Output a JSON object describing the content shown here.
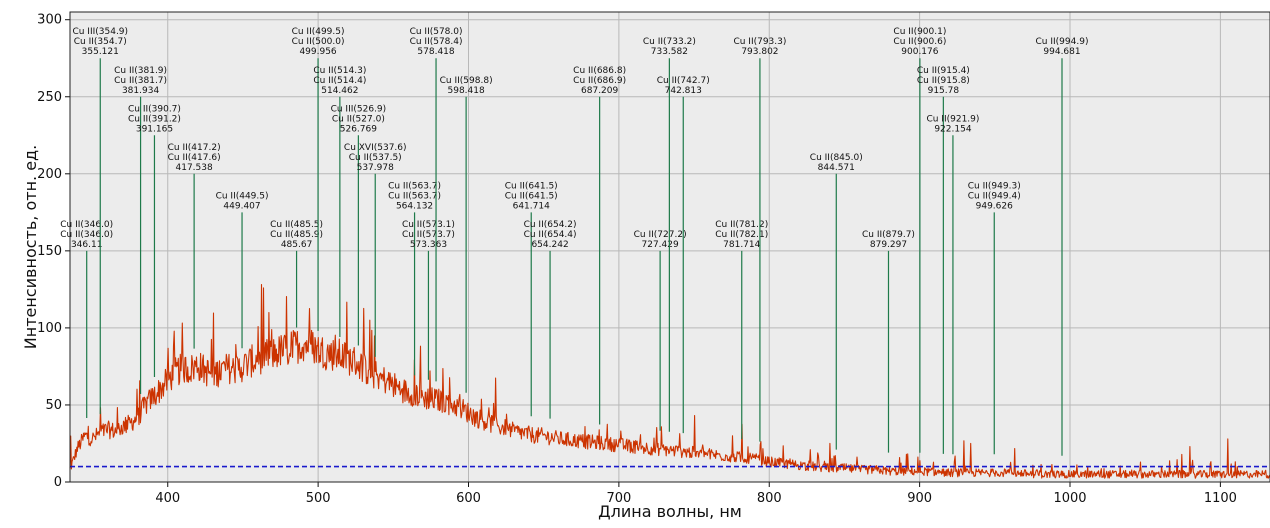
{
  "chart_data": {
    "type": "line",
    "title": "",
    "xlabel": "Длина волны, нм",
    "ylabel": "Интенсивность, отн. ед.",
    "xlim": [
      335,
      1133
    ],
    "ylim": [
      0,
      305
    ],
    "x_ticks": [
      400,
      500,
      600,
      700,
      800,
      900,
      1000,
      1100
    ],
    "y_ticks": [
      0,
      50,
      100,
      150,
      200,
      250,
      300
    ],
    "grid": true,
    "colors": {
      "spectrum": "#cc3300",
      "lines": "#1e7a4a",
      "threshold": "#1a1acc",
      "plot_bg": "#ececec",
      "grid": "#b8b8b8"
    },
    "threshold": {
      "y": 10,
      "style": "dashed"
    },
    "spectrum": {
      "name": "",
      "points": [
        [
          335,
          8
        ],
        [
          340,
          22
        ],
        [
          345,
          30
        ],
        [
          350,
          28
        ],
        [
          355,
          32
        ],
        [
          360,
          34
        ],
        [
          365,
          33
        ],
        [
          370,
          36
        ],
        [
          375,
          38
        ],
        [
          380,
          42
        ],
        [
          385,
          50
        ],
        [
          390,
          55
        ],
        [
          395,
          60
        ],
        [
          400,
          66
        ],
        [
          405,
          71
        ],
        [
          410,
          74
        ],
        [
          415,
          73
        ],
        [
          420,
          76
        ],
        [
          425,
          72
        ],
        [
          430,
          70
        ],
        [
          435,
          72
        ],
        [
          440,
          74
        ],
        [
          445,
          73
        ],
        [
          450,
          75
        ],
        [
          455,
          78
        ],
        [
          460,
          80
        ],
        [
          465,
          82
        ],
        [
          470,
          83
        ],
        [
          475,
          85
        ],
        [
          480,
          86
        ],
        [
          485,
          88
        ],
        [
          490,
          90
        ],
        [
          495,
          89
        ],
        [
          500,
          86
        ],
        [
          505,
          84
        ],
        [
          510,
          83
        ],
        [
          515,
          82
        ],
        [
          520,
          80
        ],
        [
          525,
          78
        ],
        [
          530,
          74
        ],
        [
          535,
          71
        ],
        [
          540,
          68
        ],
        [
          545,
          66
        ],
        [
          550,
          63
        ],
        [
          555,
          60
        ],
        [
          560,
          58
        ],
        [
          565,
          57
        ],
        [
          570,
          55
        ],
        [
          575,
          54
        ],
        [
          580,
          53
        ],
        [
          585,
          52
        ],
        [
          590,
          50
        ],
        [
          595,
          48
        ],
        [
          600,
          45
        ],
        [
          605,
          42
        ],
        [
          610,
          40
        ],
        [
          615,
          38
        ],
        [
          620,
          36
        ],
        [
          625,
          35
        ],
        [
          630,
          33
        ],
        [
          635,
          32
        ],
        [
          640,
          31
        ],
        [
          645,
          30
        ],
        [
          650,
          30
        ],
        [
          655,
          29
        ],
        [
          660,
          28
        ],
        [
          670,
          27
        ],
        [
          680,
          26
        ],
        [
          690,
          25
        ],
        [
          700,
          24
        ],
        [
          710,
          23
        ],
        [
          720,
          22
        ],
        [
          730,
          21
        ],
        [
          740,
          20
        ],
        [
          750,
          19
        ],
        [
          760,
          18
        ],
        [
          770,
          17
        ],
        [
          780,
          16
        ],
        [
          790,
          15
        ],
        [
          800,
          13
        ],
        [
          810,
          12
        ],
        [
          820,
          11
        ],
        [
          830,
          10
        ],
        [
          840,
          9
        ],
        [
          850,
          9
        ],
        [
          860,
          8
        ],
        [
          870,
          8
        ],
        [
          880,
          7
        ],
        [
          890,
          7
        ],
        [
          900,
          7
        ],
        [
          920,
          6
        ],
        [
          940,
          6
        ],
        [
          960,
          6
        ],
        [
          980,
          5
        ],
        [
          1000,
          5
        ],
        [
          1020,
          5
        ],
        [
          1040,
          5
        ],
        [
          1060,
          5
        ],
        [
          1080,
          5
        ],
        [
          1100,
          5
        ],
        [
          1120,
          5
        ],
        [
          1133,
          5
        ]
      ]
    },
    "lines": [
      {
        "x": 346.11,
        "y": 150,
        "labels": [
          "Cu II(346.0)",
          "Cu II(346.0)",
          "346.11"
        ]
      },
      {
        "x": 355.121,
        "y": 275,
        "labels": [
          "Cu III(354.9)",
          "Cu II(354.7)",
          "355.121"
        ]
      },
      {
        "x": 381.934,
        "y": 250,
        "labels": [
          "Cu II(381.9)",
          "Cu II(381.7)",
          "381.934"
        ]
      },
      {
        "x": 391.165,
        "y": 225,
        "labels": [
          "Cu II(390.7)",
          "Cu II(391.2)",
          "391.165"
        ]
      },
      {
        "x": 417.538,
        "y": 200,
        "labels": [
          "Cu II(417.2)",
          "Cu II(417.6)",
          "417.538"
        ]
      },
      {
        "x": 449.407,
        "y": 175,
        "labels": [
          "Cu II(449.5)",
          "449.407"
        ]
      },
      {
        "x": 485.67,
        "y": 150,
        "labels": [
          "Cu II(485.5)",
          "Cu II(485.9)",
          "485.67"
        ]
      },
      {
        "x": 499.956,
        "y": 275,
        "labels": [
          "Cu II(499.5)",
          "Cu II(500.0)",
          "499.956"
        ]
      },
      {
        "x": 514.462,
        "y": 250,
        "labels": [
          "Cu II(514.3)",
          "Cu II(514.4)",
          "514.462"
        ]
      },
      {
        "x": 526.769,
        "y": 225,
        "labels": [
          "Cu III(526.9)",
          "Cu II(527.0)",
          "526.769"
        ]
      },
      {
        "x": 537.978,
        "y": 200,
        "labels": [
          "Cu XVI(537.6)",
          "Cu II(537.5)",
          "537.978"
        ]
      },
      {
        "x": 564.132,
        "y": 175,
        "labels": [
          "Cu II(563.7)",
          "Cu II(563.7)",
          "564.132"
        ]
      },
      {
        "x": 573.363,
        "y": 150,
        "labels": [
          "Cu II(573.1)",
          "Cu II(573.7)",
          "573.363"
        ]
      },
      {
        "x": 578.418,
        "y": 275,
        "labels": [
          "Cu II(578.0)",
          "Cu II(578.4)",
          "578.418"
        ]
      },
      {
        "x": 598.418,
        "y": 250,
        "labels": [
          "Cu II(598.8)",
          "598.418"
        ]
      },
      {
        "x": 641.714,
        "y": 175,
        "labels": [
          "Cu II(641.5)",
          "Cu II(641.5)",
          "641.714"
        ]
      },
      {
        "x": 654.242,
        "y": 150,
        "labels": [
          "Cu II(654.2)",
          "Cu II(654.4)",
          "654.242"
        ]
      },
      {
        "x": 687.209,
        "y": 250,
        "labels": [
          "Cu II(686.8)",
          "Cu II(686.9)",
          "687.209"
        ]
      },
      {
        "x": 727.429,
        "y": 150,
        "labels": [
          "Cu II(727.2)",
          "727.429"
        ]
      },
      {
        "x": 733.582,
        "y": 275,
        "labels": [
          "Cu II(733.2)",
          "733.582"
        ]
      },
      {
        "x": 742.813,
        "y": 250,
        "labels": [
          "Cu II(742.7)",
          "742.813"
        ]
      },
      {
        "x": 781.714,
        "y": 150,
        "labels": [
          "Cu II(781.2)",
          "Cu II(782.1)",
          "781.714"
        ]
      },
      {
        "x": 793.802,
        "y": 275,
        "labels": [
          "Cu II(793.3)",
          "793.802"
        ]
      },
      {
        "x": 844.571,
        "y": 200,
        "labels": [
          "Cu II(845.0)",
          "844.571"
        ]
      },
      {
        "x": 879.297,
        "y": 150,
        "labels": [
          "Cu II(879.7)",
          "879.297"
        ]
      },
      {
        "x": 900.176,
        "y": 275,
        "labels": [
          "Cu II(900.1)",
          "Cu II(900.6)",
          "900.176"
        ]
      },
      {
        "x": 915.78,
        "y": 250,
        "labels": [
          "Cu II(915.4)",
          "Cu II(915.8)",
          "915.78"
        ]
      },
      {
        "x": 922.154,
        "y": 225,
        "labels": [
          "Cu II(921.9)",
          "922.154"
        ]
      },
      {
        "x": 949.626,
        "y": 175,
        "labels": [
          "Cu II(949.3)",
          "Cu II(949.4)",
          "949.626"
        ]
      },
      {
        "x": 994.681,
        "y": 275,
        "labels": [
          "Cu II(994.9)",
          "994.681"
        ]
      }
    ]
  }
}
